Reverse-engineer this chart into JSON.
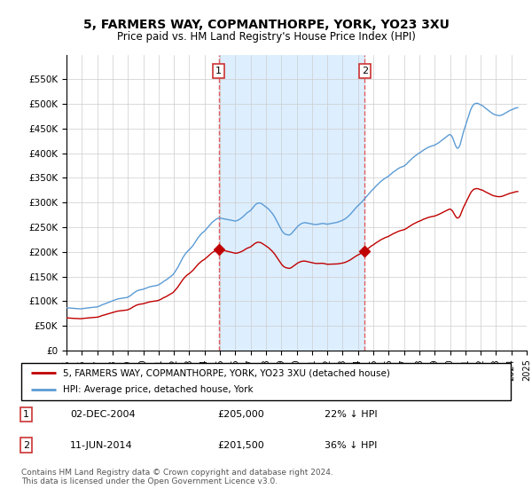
{
  "title": "5, FARMERS WAY, COPMANTHORPE, YORK, YO23 3XU",
  "subtitle": "Price paid vs. HM Land Registry's House Price Index (HPI)",
  "footer": "Contains HM Land Registry data © Crown copyright and database right 2024.\nThis data is licensed under the Open Government Licence v3.0.",
  "legend_entries": [
    "5, FARMERS WAY, COPMANTHORPE, YORK, YO23 3XU (detached house)",
    "HPI: Average price, detached house, York"
  ],
  "annotation1": {
    "label": "1",
    "date": "02-DEC-2004",
    "price": "£205,000",
    "pct": "22% ↓ HPI"
  },
  "annotation2": {
    "label": "2",
    "date": "11-JUN-2014",
    "price": "£201,500",
    "pct": "36% ↓ HPI"
  },
  "hpi_color": "#5b9bd5",
  "price_color": "#c00000",
  "vline_color": "#e06060",
  "shade_color": "#ddeeff",
  "background_color": "#ffffff",
  "grid_color": "#cccccc",
  "ylim": [
    0,
    600000
  ],
  "yticks": [
    0,
    50000,
    100000,
    150000,
    200000,
    250000,
    300000,
    350000,
    400000,
    450000,
    500000,
    550000
  ],
  "ytick_labels": [
    "£0",
    "£50K",
    "£100K",
    "£150K",
    "£200K",
    "£250K",
    "£300K",
    "£350K",
    "£400K",
    "£450K",
    "£500K",
    "£550K"
  ],
  "sale1_year": 2004.92,
  "sale1_value": 205000,
  "sale2_year": 2014.44,
  "sale2_value": 201500,
  "xmin": 1995,
  "xmax": 2025,
  "hpi_index_base_1995": 86500,
  "hpi_monthly": {
    "years": [
      1995.0,
      1995.083,
      1995.167,
      1995.25,
      1995.333,
      1995.417,
      1995.5,
      1995.583,
      1995.667,
      1995.75,
      1995.833,
      1995.917,
      1996.0,
      1996.083,
      1996.167,
      1996.25,
      1996.333,
      1996.417,
      1996.5,
      1996.583,
      1996.667,
      1996.75,
      1996.833,
      1996.917,
      1997.0,
      1997.083,
      1997.167,
      1997.25,
      1997.333,
      1997.417,
      1997.5,
      1997.583,
      1997.667,
      1997.75,
      1997.833,
      1997.917,
      1998.0,
      1998.083,
      1998.167,
      1998.25,
      1998.333,
      1998.417,
      1998.5,
      1998.583,
      1998.667,
      1998.75,
      1998.833,
      1998.917,
      1999.0,
      1999.083,
      1999.167,
      1999.25,
      1999.333,
      1999.417,
      1999.5,
      1999.583,
      1999.667,
      1999.75,
      1999.833,
      1999.917,
      2000.0,
      2000.083,
      2000.167,
      2000.25,
      2000.333,
      2000.417,
      2000.5,
      2000.583,
      2000.667,
      2000.75,
      2000.833,
      2000.917,
      2001.0,
      2001.083,
      2001.167,
      2001.25,
      2001.333,
      2001.417,
      2001.5,
      2001.583,
      2001.667,
      2001.75,
      2001.833,
      2001.917,
      2002.0,
      2002.083,
      2002.167,
      2002.25,
      2002.333,
      2002.417,
      2002.5,
      2002.583,
      2002.667,
      2002.75,
      2002.833,
      2002.917,
      2003.0,
      2003.083,
      2003.167,
      2003.25,
      2003.333,
      2003.417,
      2003.5,
      2003.583,
      2003.667,
      2003.75,
      2003.833,
      2003.917,
      2004.0,
      2004.083,
      2004.167,
      2004.25,
      2004.333,
      2004.417,
      2004.5,
      2004.583,
      2004.667,
      2004.75,
      2004.833,
      2004.917,
      2005.0,
      2005.083,
      2005.167,
      2005.25,
      2005.333,
      2005.417,
      2005.5,
      2005.583,
      2005.667,
      2005.75,
      2005.833,
      2005.917,
      2006.0,
      2006.083,
      2006.167,
      2006.25,
      2006.333,
      2006.417,
      2006.5,
      2006.583,
      2006.667,
      2006.75,
      2006.833,
      2006.917,
      2007.0,
      2007.083,
      2007.167,
      2007.25,
      2007.333,
      2007.417,
      2007.5,
      2007.583,
      2007.667,
      2007.75,
      2007.833,
      2007.917,
      2008.0,
      2008.083,
      2008.167,
      2008.25,
      2008.333,
      2008.417,
      2008.5,
      2008.583,
      2008.667,
      2008.75,
      2008.833,
      2008.917,
      2009.0,
      2009.083,
      2009.167,
      2009.25,
      2009.333,
      2009.417,
      2009.5,
      2009.583,
      2009.667,
      2009.75,
      2009.833,
      2009.917,
      2010.0,
      2010.083,
      2010.167,
      2010.25,
      2010.333,
      2010.417,
      2010.5,
      2010.583,
      2010.667,
      2010.75,
      2010.833,
      2010.917,
      2011.0,
      2011.083,
      2011.167,
      2011.25,
      2011.333,
      2011.417,
      2011.5,
      2011.583,
      2011.667,
      2011.75,
      2011.833,
      2011.917,
      2012.0,
      2012.083,
      2012.167,
      2012.25,
      2012.333,
      2012.417,
      2012.5,
      2012.583,
      2012.667,
      2012.75,
      2012.833,
      2012.917,
      2013.0,
      2013.083,
      2013.167,
      2013.25,
      2013.333,
      2013.417,
      2013.5,
      2013.583,
      2013.667,
      2013.75,
      2013.833,
      2013.917,
      2014.0,
      2014.083,
      2014.167,
      2014.25,
      2014.333,
      2014.417,
      2014.5,
      2014.583,
      2014.667,
      2014.75,
      2014.833,
      2014.917,
      2015.0,
      2015.083,
      2015.167,
      2015.25,
      2015.333,
      2015.417,
      2015.5,
      2015.583,
      2015.667,
      2015.75,
      2015.833,
      2015.917,
      2016.0,
      2016.083,
      2016.167,
      2016.25,
      2016.333,
      2016.417,
      2016.5,
      2016.583,
      2016.667,
      2016.75,
      2016.833,
      2016.917,
      2017.0,
      2017.083,
      2017.167,
      2017.25,
      2017.333,
      2017.417,
      2017.5,
      2017.583,
      2017.667,
      2017.75,
      2017.833,
      2017.917,
      2018.0,
      2018.083,
      2018.167,
      2018.25,
      2018.333,
      2018.417,
      2018.5,
      2018.583,
      2018.667,
      2018.75,
      2018.833,
      2018.917,
      2019.0,
      2019.083,
      2019.167,
      2019.25,
      2019.333,
      2019.417,
      2019.5,
      2019.583,
      2019.667,
      2019.75,
      2019.833,
      2019.917,
      2020.0,
      2020.083,
      2020.167,
      2020.25,
      2020.333,
      2020.417,
      2020.5,
      2020.583,
      2020.667,
      2020.75,
      2020.833,
      2020.917,
      2021.0,
      2021.083,
      2021.167,
      2021.25,
      2021.333,
      2021.417,
      2021.5,
      2021.583,
      2021.667,
      2021.75,
      2021.833,
      2021.917,
      2022.0,
      2022.083,
      2022.167,
      2022.25,
      2022.333,
      2022.417,
      2022.5,
      2022.583,
      2022.667,
      2022.75,
      2022.833,
      2022.917,
      2023.0,
      2023.083,
      2023.167,
      2023.25,
      2023.333,
      2023.417,
      2023.5,
      2023.583,
      2023.667,
      2023.75,
      2023.833,
      2023.917,
      2024.0,
      2024.083,
      2024.167,
      2024.25,
      2024.333,
      2024.417
    ],
    "values": [
      86500,
      86200,
      86000,
      85800,
      85500,
      85200,
      85000,
      84800,
      84600,
      84400,
      84300,
      84200,
      84500,
      84800,
      85200,
      85600,
      86000,
      86300,
      86600,
      86900,
      87200,
      87400,
      87700,
      87900,
      88200,
      89000,
      90000,
      91500,
      92800,
      93500,
      94500,
      95500,
      96500,
      97500,
      98500,
      99500,
      100500,
      101500,
      102500,
      103500,
      104200,
      104800,
      105200,
      105600,
      106000,
      106400,
      106800,
      107200,
      108000,
      109500,
      111000,
      113000,
      115500,
      117000,
      119000,
      120500,
      121500,
      122500,
      123000,
      123500,
      124000,
      125000,
      126000,
      127000,
      128000,
      129000,
      129500,
      130000,
      130500,
      131000,
      131500,
      132000,
      133000,
      134500,
      136000,
      138000,
      140000,
      141500,
      143000,
      145000,
      147000,
      149000,
      151000,
      153000,
      156000,
      160000,
      164000,
      168000,
      173000,
      178000,
      183000,
      188000,
      192000,
      196000,
      199000,
      202000,
      204000,
      207000,
      210000,
      213000,
      217000,
      221000,
      225000,
      229000,
      232000,
      235000,
      238000,
      240000,
      242000,
      245000,
      248000,
      251000,
      254000,
      257000,
      260000,
      262000,
      264000,
      266000,
      267500,
      268500,
      268500,
      268000,
      267500,
      267000,
      266500,
      266000,
      265500,
      265000,
      264500,
      264000,
      263500,
      263000,
      262500,
      263000,
      264000,
      265500,
      267000,
      269000,
      271000,
      273500,
      276000,
      278500,
      280500,
      282000,
      284000,
      287000,
      290000,
      293500,
      296000,
      298000,
      299000,
      299000,
      298500,
      297000,
      295000,
      293000,
      291000,
      289000,
      287000,
      284000,
      281000,
      278000,
      274000,
      270000,
      265000,
      260000,
      255000,
      250000,
      245000,
      241000,
      238000,
      236000,
      235000,
      234500,
      234000,
      235000,
      237000,
      240000,
      243000,
      246000,
      249000,
      252000,
      254000,
      256000,
      257500,
      258500,
      259000,
      259000,
      258500,
      258000,
      257500,
      257000,
      256500,
      256000,
      255500,
      255500,
      255500,
      256000,
      256500,
      257000,
      257500,
      257500,
      257000,
      256500,
      256000,
      256500,
      257000,
      257500,
      258000,
      258500,
      259000,
      259500,
      260000,
      261000,
      262000,
      263000,
      264000,
      265500,
      267000,
      269000,
      271000,
      273500,
      276000,
      279000,
      282000,
      285000,
      288000,
      291000,
      293500,
      296000,
      298500,
      301000,
      304000,
      307000,
      310000,
      313000,
      316000,
      319000,
      322000,
      325000,
      327000,
      330000,
      333000,
      335500,
      338000,
      340500,
      343000,
      345000,
      347000,
      349000,
      350500,
      352000,
      353500,
      356000,
      358000,
      360500,
      362500,
      364000,
      366000,
      368000,
      369500,
      371000,
      372000,
      373000,
      374000,
      376000,
      378000,
      381000,
      383500,
      386000,
      388500,
      391000,
      393000,
      395000,
      397000,
      399000,
      400500,
      402000,
      404000,
      406000,
      407500,
      409000,
      410500,
      412000,
      413000,
      414000,
      415000,
      415500,
      416500,
      418000,
      419500,
      421000,
      423000,
      425000,
      427000,
      429000,
      431000,
      433000,
      435000,
      437000,
      438000,
      436000,
      432000,
      425000,
      418000,
      412000,
      410000,
      412000,
      418000,
      428000,
      438000,
      447000,
      455000,
      463000,
      471000,
      479000,
      487000,
      493000,
      497000,
      500000,
      501000,
      501500,
      501000,
      499500,
      498000,
      497000,
      495500,
      493000,
      491000,
      489000,
      487000,
      485000,
      483000,
      481000,
      479500,
      478500,
      477500,
      477000,
      476500,
      476500,
      477000,
      478000,
      479500,
      481000,
      482500,
      484000,
      485500,
      487000,
      488000,
      489000,
      490000,
      491500,
      492000,
      492500
    ]
  }
}
